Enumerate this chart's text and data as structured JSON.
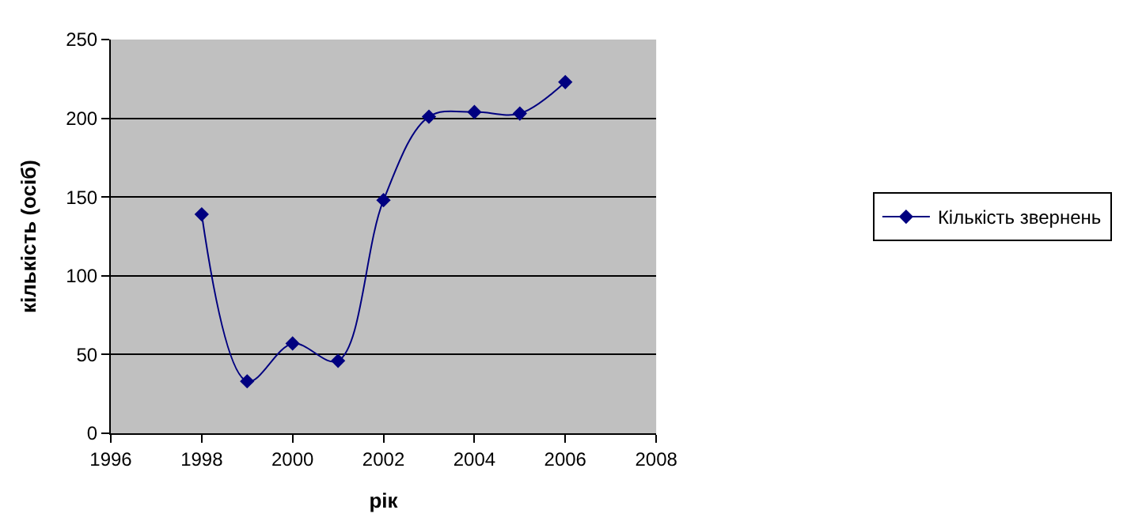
{
  "chart_data": {
    "type": "line",
    "xlabel": "рік",
    "ylabel": "кількість (осіб)",
    "x": [
      1998,
      1999,
      2000,
      2001,
      2002,
      2003,
      2004,
      2005,
      2006
    ],
    "series": [
      {
        "name": "Кількість звернень",
        "color": "#000080",
        "values": [
          139,
          33,
          57,
          46,
          148,
          201,
          204,
          203,
          223
        ]
      }
    ],
    "xlim": [
      1996,
      2008
    ],
    "xticks": [
      1996,
      1998,
      2000,
      2002,
      2004,
      2006,
      2008
    ],
    "ylim": [
      0,
      250
    ],
    "yticks": [
      0,
      50,
      100,
      150,
      200,
      250
    ],
    "grid": "y",
    "legend": "right",
    "marker": "diamond",
    "line_style": "solid"
  }
}
